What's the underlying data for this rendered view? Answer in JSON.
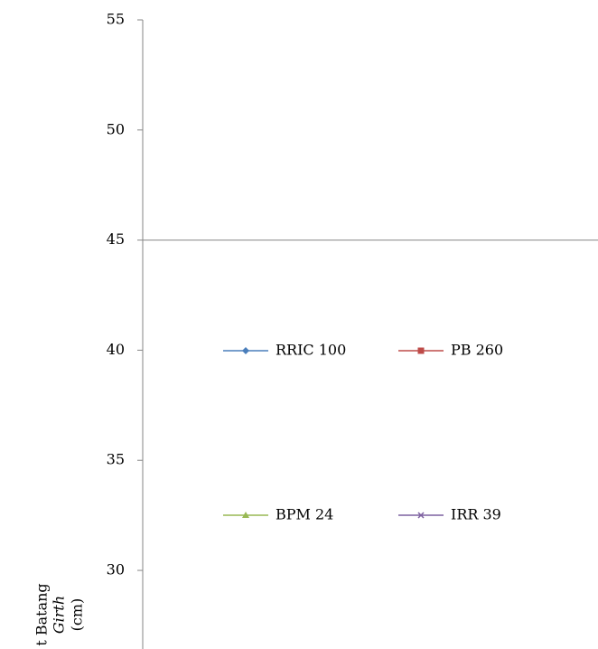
{
  "chart_data": {
    "type": "line",
    "ylabel": [
      "t Batang",
      "Girth",
      "(cm)"
    ],
    "ylim": [
      26.43,
      55
    ],
    "yticks": [
      30,
      35,
      40,
      45,
      50,
      55
    ],
    "reference_line": 45,
    "series": [
      {
        "name": "RRIC 100",
        "color": "#4a7ebb",
        "marker": "diamond",
        "values": []
      },
      {
        "name": "PB 260",
        "color": "#be4b48",
        "marker": "square",
        "values": []
      },
      {
        "name": "BPM 24",
        "color": "#98b954",
        "marker": "triangle",
        "values": []
      },
      {
        "name": "IRR 39",
        "color": "#7d60a0",
        "marker": "x",
        "values": []
      }
    ]
  }
}
